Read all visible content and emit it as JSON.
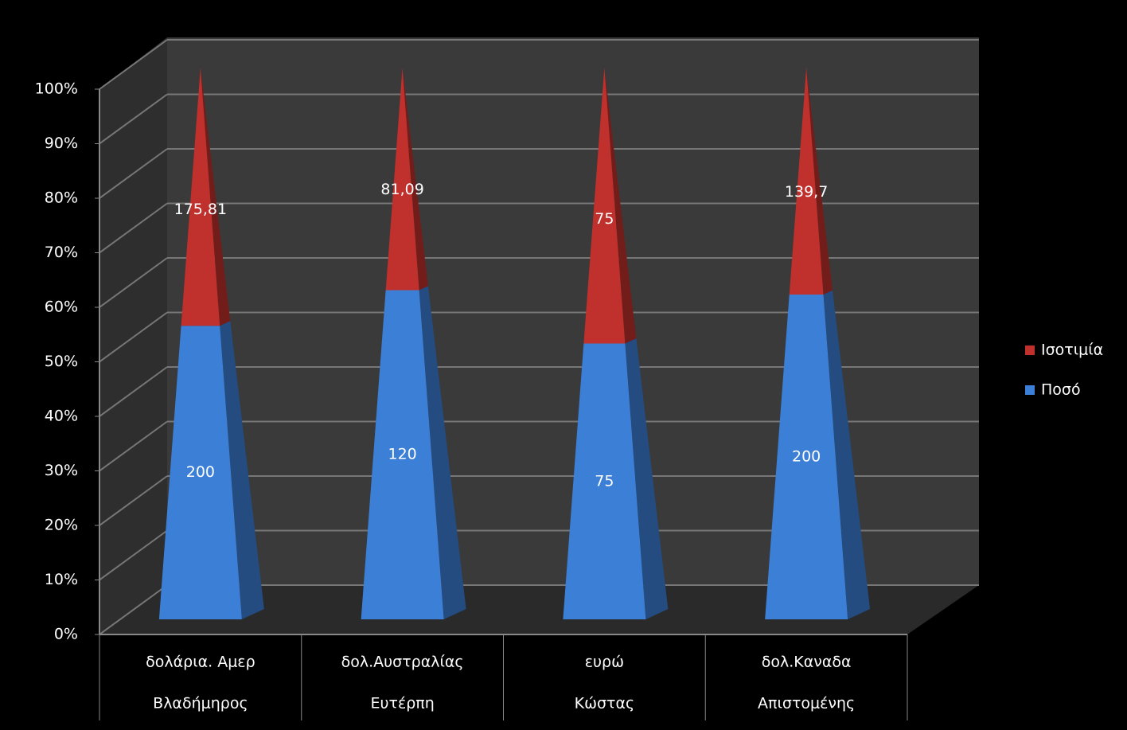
{
  "chart_data": {
    "type": "bar",
    "stacking": "percent",
    "shape": "pyramid",
    "categories": [
      "δολάρια. Αμερ",
      "δολ.Αυστραλίας",
      "ευρώ",
      "δολ.Καναδα"
    ],
    "groups": [
      "Βλαδήμηρος",
      "Ευτέρπη",
      "Κώστας",
      "Απιστομένης"
    ],
    "series": [
      {
        "name": "Ποσό",
        "color": "#3c7fd6",
        "values": [
          200,
          120,
          75,
          200
        ]
      },
      {
        "name": "Ισοτιμία",
        "color": "#c0302c",
        "values": [
          175.81,
          81.09,
          75,
          139.7
        ],
        "value_labels": [
          "175,81",
          "81,09",
          "75",
          "139,7"
        ]
      }
    ],
    "ylim": [
      0,
      100
    ],
    "yticks": [
      {
        "value": 0,
        "label": "0%"
      },
      {
        "value": 10,
        "label": "10%"
      },
      {
        "value": 20,
        "label": "20%"
      },
      {
        "value": 30,
        "label": "30%"
      },
      {
        "value": 40,
        "label": "40%"
      },
      {
        "value": 50,
        "label": "50%"
      },
      {
        "value": 60,
        "label": "60%"
      },
      {
        "value": 70,
        "label": "70%"
      },
      {
        "value": 80,
        "label": "80%"
      },
      {
        "value": 90,
        "label": "90%"
      },
      {
        "value": 100,
        "label": "100%"
      }
    ],
    "grid": true,
    "legend": "right"
  }
}
